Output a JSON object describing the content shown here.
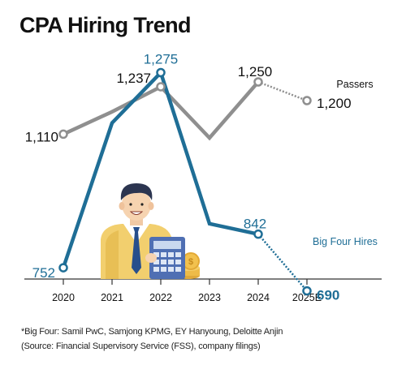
{
  "chart_data": {
    "type": "line",
    "title": "CPA Hiring Trend",
    "categories": [
      "2020",
      "2021",
      "2022",
      "2023",
      "2024",
      "2025E"
    ],
    "series": [
      {
        "name": "Passers",
        "color": "#8f8f8f",
        "values": [
          1110,
          1170,
          1237,
          1100,
          1250,
          1200
        ],
        "labels": [
          "1,110",
          "",
          "1,237",
          "",
          "1,250",
          "1,200"
        ]
      },
      {
        "name": "Big Four Hires",
        "color": "#1f6e96",
        "values": [
          752,
          1140,
          1275,
          870,
          842,
          690
        ],
        "labels": [
          "752",
          "",
          "1,275",
          "",
          "842",
          "690"
        ]
      }
    ],
    "projected_from_index": 4,
    "ylim": [
      600,
      1400
    ],
    "grid": false,
    "legend": "inline labels at line ends"
  },
  "footnotes": [
    "*Big Four: Samil PwC, Samjong KPMG, EY Hanyoung, Deloitte Anjin",
    "(Source: Financial Supervisory Service (FSS), company filings)"
  ],
  "illustration": "businessman-with-calculator-and-coins"
}
